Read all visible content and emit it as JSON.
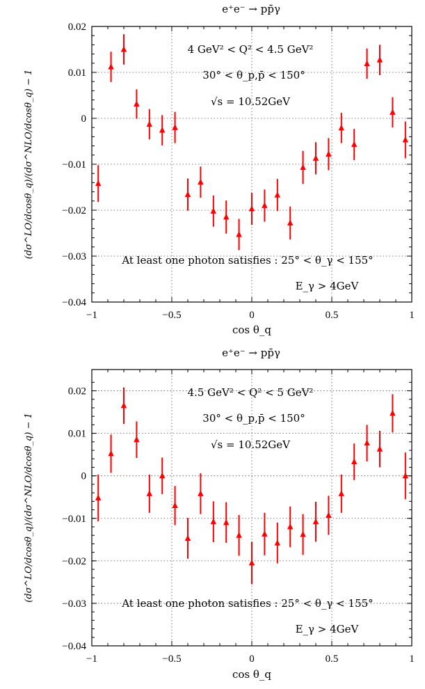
{
  "chart_data": [
    {
      "type": "scatter",
      "title": "e⁺e⁻ → pp̄γ",
      "xlabel": "cos θ_q",
      "ylabel": "(dσ^LO/dcosθ_q)/(dσ^NLO/dcosθ_q) − 1",
      "xlim": [
        -1,
        1
      ],
      "ylim": [
        -0.04,
        0.02
      ],
      "xticks": [
        -1,
        -0.5,
        0,
        0.5,
        1
      ],
      "xtick_labels": [
        "−1",
        "−0.5",
        "0",
        "0.5",
        "1"
      ],
      "yticks": [
        -0.04,
        -0.03,
        -0.02,
        -0.01,
        0,
        0.01,
        0.02
      ],
      "ytick_labels": [
        "−0.04",
        "−0.03",
        "−0.02",
        "−0.01",
        "0",
        "0.01",
        "0.02"
      ],
      "grid": true,
      "annotations": [
        "4 GeV² < Q² < 4.5 GeV²",
        "30° < θ_p,p̄ < 150°",
        "√s = 10.52GeV",
        "At least one photon satisfies :  25° < θ_γ < 155°",
        "E_γ > 4GeV"
      ],
      "series": [
        {
          "x": [
            -0.96,
            -0.88,
            -0.8,
            -0.72,
            -0.64,
            -0.56,
            -0.48,
            -0.4,
            -0.32,
            -0.24,
            -0.16,
            -0.08,
            0.0,
            0.08,
            0.16,
            0.24,
            0.32,
            0.4,
            0.48,
            0.56,
            0.64,
            0.72,
            0.8,
            0.88,
            0.96
          ],
          "y": [
            -0.0142,
            0.0112,
            0.015,
            0.0031,
            -0.0013,
            -0.0026,
            -0.002,
            -0.0166,
            -0.0139,
            -0.0202,
            -0.0215,
            -0.0253,
            -0.0197,
            -0.019,
            -0.0167,
            -0.0228,
            -0.0107,
            -0.0087,
            -0.0078,
            -0.0021,
            -0.0057,
            0.0119,
            0.0127,
            0.0013,
            -0.0047
          ],
          "yerr": [
            0.004,
            0.0033,
            0.0033,
            0.0032,
            0.0033,
            0.0033,
            0.0034,
            0.0035,
            0.0034,
            0.0034,
            0.0036,
            0.0034,
            0.0035,
            0.0035,
            0.0035,
            0.0036,
            0.0036,
            0.0035,
            0.0035,
            0.0033,
            0.0034,
            0.0033,
            0.0033,
            0.0033,
            0.004
          ]
        }
      ]
    },
    {
      "type": "scatter",
      "title": "e⁺e⁻ → pp̄γ",
      "xlabel": "cos θ_q",
      "ylabel": "(dσ^LO/dcosθ_q)/(dσ^NLO/dcosθ_q) − 1",
      "xlim": [
        -1,
        1
      ],
      "ylim": [
        -0.04,
        0.025
      ],
      "xticks": [
        -1,
        -0.5,
        0,
        0.5,
        1
      ],
      "xtick_labels": [
        "−1",
        "−0.5",
        "0",
        "0.5",
        "1"
      ],
      "yticks": [
        -0.04,
        -0.03,
        -0.02,
        -0.01,
        0,
        0.01,
        0.02
      ],
      "ytick_labels": [
        "−0.04",
        "−0.03",
        "−0.02",
        "−0.01",
        "0",
        "0.01",
        "0.02"
      ],
      "grid": true,
      "annotations": [
        "4.5 GeV² < Q² < 5 GeV²",
        "30° < θ_p,p̄ < 150°",
        "√s = 10.52GeV",
        "At least one photon satisfies :  25° < θ_γ < 155°",
        "E_γ > 4GeV"
      ],
      "series": [
        {
          "x": [
            -0.96,
            -0.88,
            -0.8,
            -0.72,
            -0.64,
            -0.56,
            -0.48,
            -0.4,
            -0.32,
            -0.24,
            -0.16,
            -0.08,
            0.0,
            0.08,
            0.16,
            0.24,
            0.32,
            0.4,
            0.48,
            0.56,
            0.64,
            0.72,
            0.8,
            0.88,
            0.96
          ],
          "y": [
            -0.0052,
            0.0052,
            0.0165,
            0.0085,
            -0.0042,
            0.0,
            -0.007,
            -0.0147,
            -0.0042,
            -0.0108,
            -0.011,
            -0.014,
            -0.0205,
            -0.0137,
            -0.0158,
            -0.012,
            -0.0138,
            -0.0108,
            -0.0093,
            -0.0042,
            0.0033,
            0.0077,
            0.0063,
            0.0147,
            0.0
          ],
          "yerr": [
            0.0055,
            0.0045,
            0.0043,
            0.0043,
            0.0045,
            0.0043,
            0.0046,
            0.0048,
            0.0048,
            0.0048,
            0.0048,
            0.0048,
            0.005,
            0.005,
            0.0048,
            0.0048,
            0.0048,
            0.0047,
            0.0046,
            0.0045,
            0.0043,
            0.0043,
            0.0043,
            0.0045,
            0.0055
          ]
        }
      ]
    }
  ]
}
